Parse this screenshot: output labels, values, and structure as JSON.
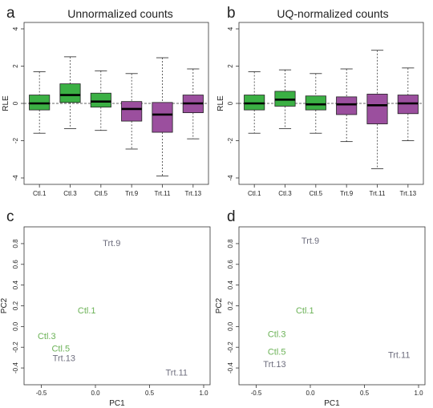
{
  "colors": {
    "ctl": "#3bb044",
    "trt": "#9b4f9e",
    "ctl_text": "#6bb256",
    "trt_text": "#6e6e7e"
  },
  "chart_data": [
    {
      "type": "box",
      "panel": "a",
      "title": "Unnormalized counts",
      "xlabel": "",
      "ylabel": "RLE",
      "ylim": [
        -4,
        4
      ],
      "yticks": [
        -4,
        -2,
        0,
        2,
        4
      ],
      "categories": [
        "Ctl.1",
        "Ctl.3",
        "Ctl.5",
        "Trt.9",
        "Trt.11",
        "Trt.13"
      ],
      "groups": [
        "ctl",
        "ctl",
        "ctl",
        "trt",
        "trt",
        "trt"
      ],
      "boxes": [
        {
          "whisker_low": -1.6,
          "q1": -0.35,
          "median": 0.0,
          "q3": 0.45,
          "whisker_high": 1.7
        },
        {
          "whisker_low": -1.35,
          "q1": 0.05,
          "median": 0.45,
          "q3": 1.05,
          "whisker_high": 2.5
        },
        {
          "whisker_low": -1.45,
          "q1": -0.2,
          "median": 0.1,
          "q3": 0.55,
          "whisker_high": 1.75
        },
        {
          "whisker_low": -2.45,
          "q1": -0.95,
          "median": -0.3,
          "q3": 0.1,
          "whisker_high": 1.6
        },
        {
          "whisker_low": -3.9,
          "q1": -1.55,
          "median": -0.6,
          "q3": 0.05,
          "whisker_high": 2.45
        },
        {
          "whisker_low": -1.9,
          "q1": -0.5,
          "median": 0.0,
          "q3": 0.45,
          "whisker_high": 1.85
        }
      ],
      "reference_line": 0
    },
    {
      "type": "box",
      "panel": "b",
      "title": "UQ-normalized counts",
      "xlabel": "",
      "ylabel": "RLE",
      "ylim": [
        -4,
        4
      ],
      "yticks": [
        -4,
        -2,
        0,
        2,
        4
      ],
      "categories": [
        "Ctl.1",
        "Ctl.3",
        "Ctl.5",
        "Trt.9",
        "Trt.11",
        "Trt.13"
      ],
      "groups": [
        "ctl",
        "ctl",
        "ctl",
        "trt",
        "trt",
        "trt"
      ],
      "boxes": [
        {
          "whisker_low": -1.6,
          "q1": -0.35,
          "median": 0.0,
          "q3": 0.45,
          "whisker_high": 1.7
        },
        {
          "whisker_low": -1.35,
          "q1": -0.15,
          "median": 0.2,
          "q3": 0.65,
          "whisker_high": 1.8
        },
        {
          "whisker_low": -1.6,
          "q1": -0.35,
          "median": -0.05,
          "q3": 0.4,
          "whisker_high": 1.6
        },
        {
          "whisker_low": -2.05,
          "q1": -0.6,
          "median": -0.05,
          "q3": 0.35,
          "whisker_high": 1.85
        },
        {
          "whisker_low": -3.5,
          "q1": -1.1,
          "median": -0.1,
          "q3": 0.5,
          "whisker_high": 2.85
        },
        {
          "whisker_low": -2.0,
          "q1": -0.55,
          "median": 0.0,
          "q3": 0.45,
          "whisker_high": 1.9
        }
      ],
      "reference_line": 0
    },
    {
      "type": "scatter",
      "panel": "c",
      "title": "",
      "xlabel": "PC1",
      "ylabel": "PC2",
      "xlim": [
        -0.6,
        1.0
      ],
      "ylim": [
        -0.5,
        0.9
      ],
      "xticks": [
        -0.5,
        0.0,
        0.5,
        1.0
      ],
      "yticks": [
        -0.4,
        -0.2,
        0.0,
        0.2,
        0.4,
        0.6,
        0.8
      ],
      "points": [
        {
          "label": "Trt.9",
          "x": 0.15,
          "y": 0.8,
          "group": "trt"
        },
        {
          "label": "Ctl.1",
          "x": -0.08,
          "y": 0.15,
          "group": "ctl"
        },
        {
          "label": "Ctl.3",
          "x": -0.45,
          "y": -0.1,
          "group": "ctl"
        },
        {
          "label": "Ctl.5",
          "x": -0.32,
          "y": -0.22,
          "group": "ctl"
        },
        {
          "label": "Trt.13",
          "x": -0.29,
          "y": -0.31,
          "group": "trt"
        },
        {
          "label": "Trt.11",
          "x": 0.75,
          "y": -0.45,
          "group": "trt"
        }
      ]
    },
    {
      "type": "scatter",
      "panel": "d",
      "title": "",
      "xlabel": "PC1",
      "ylabel": "PC2",
      "xlim": [
        -0.6,
        1.0
      ],
      "ylim": [
        -0.5,
        0.9
      ],
      "xticks": [
        -0.5,
        0.0,
        0.5,
        1.0
      ],
      "yticks": [
        -0.4,
        -0.2,
        0.0,
        0.2,
        0.4,
        0.6,
        0.8
      ],
      "points": [
        {
          "label": "Trt.9",
          "x": 0.0,
          "y": 0.82,
          "group": "trt"
        },
        {
          "label": "Ctl.1",
          "x": -0.05,
          "y": 0.15,
          "group": "ctl"
        },
        {
          "label": "Ctl.3",
          "x": -0.31,
          "y": -0.08,
          "group": "ctl"
        },
        {
          "label": "Ctl.5",
          "x": -0.31,
          "y": -0.25,
          "group": "ctl"
        },
        {
          "label": "Trt.13",
          "x": -0.33,
          "y": -0.37,
          "group": "trt"
        },
        {
          "label": "Trt.11",
          "x": 0.82,
          "y": -0.28,
          "group": "trt"
        }
      ]
    }
  ]
}
